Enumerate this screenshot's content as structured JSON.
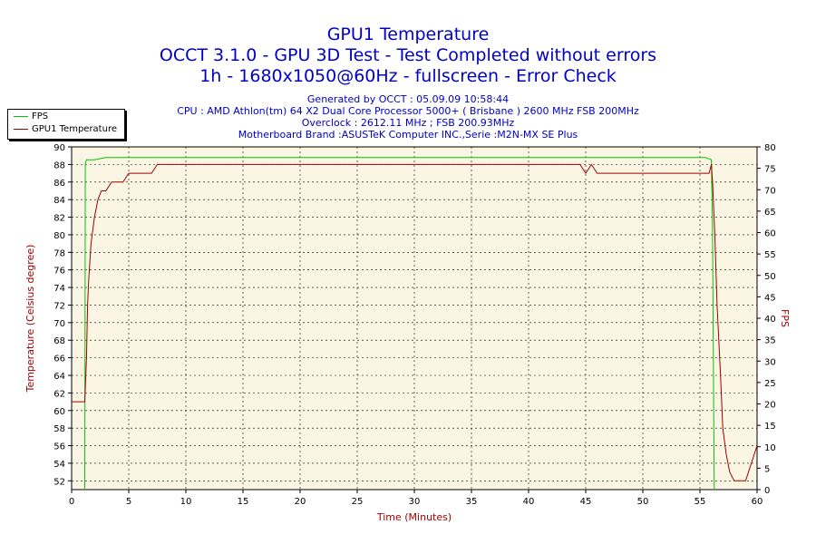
{
  "chart_data": {
    "type": "line",
    "title": "GPU1 Temperature",
    "subtitle_1": "OCCT 3.1.0 - GPU 3D Test - Test Completed without errors",
    "subtitle_2": "1h - 1680x1050@60Hz - fullscreen - Error Check",
    "info_lines": [
      "Generated by OCCT : 05.09.09 10:58:44",
      "CPU : AMD Athlon(tm) 64 X2 Dual Core Processor 5000+ ( Brisbane ) 2600 MHz FSB 200MHz",
      "Overclock : 2612.11 MHz ; FSB 200.93MHz",
      "Motherboard Brand :ASUSTeK Computer INC.,Serie :M2N-MX SE Plus"
    ],
    "xlabel": "Time (Minutes)",
    "ylabel_left": "Temperature (Celsius degree)",
    "ylabel_right": "FPS",
    "xlim": [
      0,
      60
    ],
    "ylim_left": [
      51,
      90
    ],
    "ylim_right": [
      0,
      80
    ],
    "x_ticks": [
      0,
      5,
      10,
      15,
      20,
      25,
      30,
      35,
      40,
      45,
      50,
      55,
      60
    ],
    "y_ticks_left": [
      52,
      54,
      56,
      58,
      60,
      62,
      64,
      66,
      68,
      70,
      72,
      74,
      76,
      78,
      80,
      82,
      84,
      86,
      88,
      90
    ],
    "y_ticks_right": [
      0,
      5,
      10,
      15,
      20,
      25,
      30,
      35,
      40,
      45,
      50,
      55,
      60,
      65,
      70,
      75,
      80
    ],
    "grid": true,
    "legend_position": "top-left",
    "series": [
      {
        "name": "FPS",
        "axis": "right",
        "color": "#00c800",
        "x": [
          0,
          1.15,
          1.2,
          1.3,
          2,
          3,
          5,
          10,
          20,
          30,
          40,
          45,
          50,
          55.5,
          56.0,
          56.1,
          56.2,
          56.25
        ],
        "y": [
          null,
          0,
          76,
          77,
          77,
          77.5,
          77.5,
          77.5,
          77.5,
          77.5,
          77.5,
          77.5,
          77.5,
          77.5,
          77,
          60,
          20,
          0
        ]
      },
      {
        "name": "GPU1 Temperature",
        "axis": "left",
        "color": "#a00000",
        "x": [
          0,
          1.15,
          1.3,
          1.4,
          1.5,
          1.7,
          2.0,
          2.3,
          2.6,
          3.0,
          3.5,
          4.0,
          4.5,
          5.0,
          5.5,
          6.0,
          6.5,
          7.0,
          7.5,
          8.0,
          10,
          20,
          30,
          40,
          44.5,
          45.0,
          45.5,
          46.0,
          47,
          50,
          55,
          55.8,
          56.0,
          56.1,
          56.3,
          56.5,
          56.8,
          57.0,
          57.3,
          57.6,
          58.0,
          58.5,
          59.0,
          59.5,
          60.0
        ],
        "y": [
          61,
          61,
          66,
          72,
          75,
          79,
          82,
          84,
          85,
          85,
          86,
          86,
          86,
          87,
          87,
          87,
          87,
          87,
          88,
          88,
          88,
          88,
          88,
          88,
          88,
          87,
          88,
          87,
          87,
          87,
          87,
          87,
          88,
          86,
          80,
          72,
          64,
          58,
          55,
          53,
          52,
          52,
          52,
          54,
          56
        ]
      }
    ]
  }
}
